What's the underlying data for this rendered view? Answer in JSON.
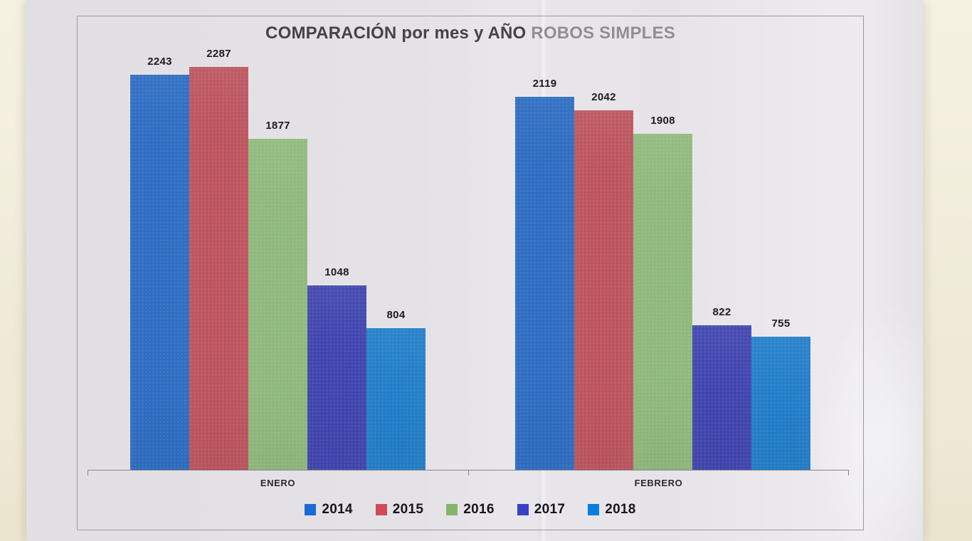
{
  "title": {
    "main": "COMPARACIÓN por mes y AÑO",
    "suffix": "ROBOS SIMPLES"
  },
  "chart_data": {
    "type": "bar",
    "title": "COMPARACIÓN por mes y AÑO ROBOS SIMPLES",
    "categories": [
      "ENERO",
      "FEBRERO"
    ],
    "series": [
      {
        "name": "2014",
        "color": "#2d6ec5",
        "values": [
          2243,
          2119
        ]
      },
      {
        "name": "2015",
        "color": "#c05560",
        "values": [
          2287,
          2042
        ]
      },
      {
        "name": "2016",
        "color": "#92bc7e",
        "values": [
          1877,
          1908
        ]
      },
      {
        "name": "2017",
        "color": "#4045b2",
        "values": [
          1048,
          822
        ]
      },
      {
        "name": "2018",
        "color": "#2180cd",
        "values": [
          804,
          755
        ]
      }
    ],
    "ylim": [
      0,
      2660
    ],
    "grid": false,
    "legend_position": "bottom",
    "value_labels": true
  }
}
